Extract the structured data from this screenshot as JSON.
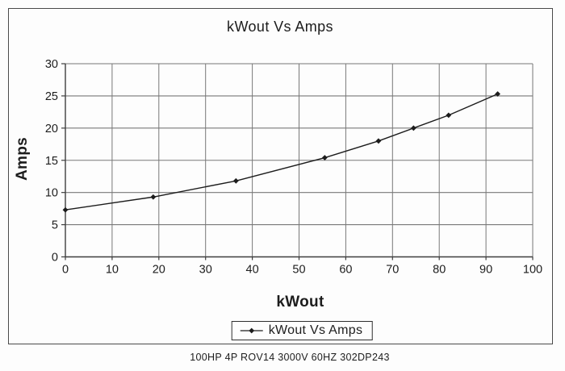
{
  "chart_data": {
    "type": "line",
    "title": "kWout Vs Amps",
    "xlabel": "kWout",
    "ylabel": "Amps",
    "xlim": [
      0,
      100
    ],
    "ylim": [
      0,
      30
    ],
    "xticks": [
      0,
      10,
      20,
      30,
      40,
      50,
      60,
      70,
      80,
      90,
      100
    ],
    "yticks": [
      0,
      5,
      10,
      15,
      20,
      25,
      30
    ],
    "grid": true,
    "legend_position": "bottom-center",
    "series": [
      {
        "name": "kWout Vs Amps",
        "marker": "diamond",
        "points": [
          [
            0,
            7.3
          ],
          [
            18.8,
            9.3
          ],
          [
            36.5,
            11.8
          ],
          [
            55.5,
            15.4
          ],
          [
            67,
            18
          ],
          [
            74.5,
            20
          ],
          [
            82,
            22
          ],
          [
            92.5,
            25.3
          ]
        ]
      }
    ]
  },
  "caption": "100HP 4P ROV14 3000V 60HZ 302DP243",
  "colors": {
    "series": "#1c1c1c",
    "grid": "#787878",
    "axis": "#3e3e3e",
    "frame": "#4a4a4a",
    "text": "#1d1d1d",
    "background": "#fdfdfd"
  }
}
